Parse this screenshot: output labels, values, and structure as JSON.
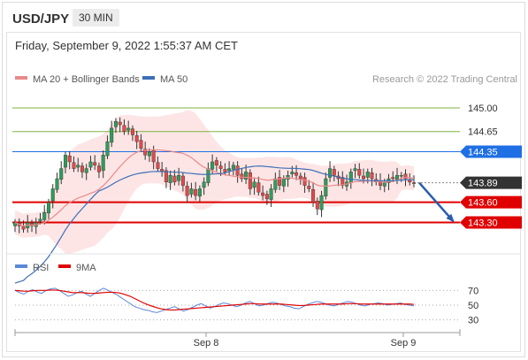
{
  "header": {
    "symbol": "USD/JPY",
    "timeframe": "30 MIN",
    "datetime": "Friday, September 9, 2022 1:55:37 AM CET"
  },
  "colors": {
    "up_candle": "#2e9d5a",
    "down_candle": "#e24a4a",
    "ma20": "#e88a8a",
    "bollinger_fill": "#fde0e0",
    "ma50": "#3d6fb8",
    "support": "#e00000",
    "resistance_blue": "#1f6fe5",
    "resistance_green": "#7cb342",
    "current": "#333333",
    "rsi": "#5b87d9",
    "rsi_ma": "#e00000",
    "forecast_arrow": "#2a5caa"
  },
  "chart_data": [
    {
      "type": "candlestick",
      "legend": [
        {
          "name": "MA 20 + Bollinger Bands",
          "color": "#e88a8a"
        },
        {
          "name": "MA 50",
          "color": "#3d6fb8"
        }
      ],
      "legend_placement": "top-left",
      "copyright": "Research © 2022 Trading Central",
      "ylim": [
        142.9,
        145.25
      ],
      "x_ticks": [
        "Sep 8",
        "Sep 9"
      ],
      "x_tick_index": [
        50,
        104
      ],
      "levels": [
        {
          "label": "145.00",
          "value": 145.0,
          "kind": "resistance-green"
        },
        {
          "label": "144.65",
          "value": 144.65,
          "kind": "resistance-green"
        },
        {
          "label": "144.35",
          "value": 144.35,
          "kind": "resistance-blue"
        },
        {
          "label": "143.89",
          "value": 143.89,
          "kind": "current"
        },
        {
          "label": "143.60",
          "value": 143.6,
          "kind": "support"
        },
        {
          "label": "143.30",
          "value": 143.3,
          "kind": "support"
        }
      ],
      "forecast": {
        "direction": "down",
        "from": 143.89,
        "to": 143.3
      },
      "close_series": [
        143.3,
        143.25,
        143.2,
        143.3,
        143.25,
        143.3,
        143.35,
        143.45,
        143.6,
        143.8,
        143.95,
        144.1,
        144.3,
        144.2,
        144.1,
        144.15,
        144.05,
        144.1,
        144.2,
        144.15,
        144.05,
        144.3,
        144.5,
        144.7,
        144.8,
        144.75,
        144.65,
        144.7,
        144.6,
        144.5,
        144.4,
        144.3,
        144.35,
        144.2,
        144.1,
        144.05,
        143.9,
        144.0,
        143.9,
        144.0,
        143.85,
        143.7,
        143.8,
        143.7,
        143.8,
        143.9,
        144.1,
        144.2,
        144.15,
        144.1,
        144.05,
        144.1,
        144.15,
        144.0,
        143.95,
        144.05,
        143.8,
        143.9,
        143.75,
        143.7,
        143.65,
        143.8,
        143.95,
        143.85,
        143.95,
        144.0,
        144.05,
        144.0,
        143.95,
        143.85,
        143.8,
        143.6,
        143.5,
        143.7,
        143.95,
        144.1,
        144.0,
        143.95,
        143.85,
        143.9,
        144.05,
        144.1,
        144.0,
        143.95,
        144.05,
        143.95,
        143.9,
        143.85,
        143.9,
        143.95,
        143.95,
        144.0,
        144.0,
        143.95,
        143.9,
        143.89
      ]
    },
    {
      "type": "line",
      "legend": [
        {
          "name": "RSI",
          "color": "#5b87d9"
        },
        {
          "name": "9MA",
          "color": "#e00000"
        }
      ],
      "ylim": [
        20,
        80
      ],
      "levels": [
        {
          "label": "70",
          "value": 70
        },
        {
          "label": "50",
          "value": 50
        },
        {
          "label": "30",
          "value": 30
        }
      ],
      "rsi": [
        70,
        67,
        65,
        69,
        71,
        68,
        66,
        70,
        72,
        73,
        70,
        66,
        62,
        64,
        67,
        69,
        65,
        62,
        66,
        70,
        73,
        70,
        67,
        64,
        60,
        56,
        52,
        48,
        46,
        44,
        43,
        41,
        40,
        42,
        44,
        46,
        48,
        45,
        42,
        44,
        47,
        50,
        52,
        49,
        46,
        48,
        51,
        53,
        52,
        50,
        48,
        50,
        53,
        55,
        52,
        49,
        50,
        52,
        54,
        53,
        51,
        49,
        48,
        46,
        45,
        48,
        51,
        53,
        55,
        54,
        52,
        50,
        49,
        51,
        53,
        55,
        54,
        52,
        50,
        49,
        51,
        52,
        53,
        52,
        50,
        51,
        52,
        53,
        51,
        50,
        49
      ],
      "rsi_ma": [
        70,
        69.5,
        69,
        69,
        69.5,
        70,
        70,
        70,
        70.5,
        70.5,
        70,
        69,
        68,
        67,
        67,
        67,
        66.5,
        66,
        66,
        66.5,
        67,
        67.5,
        67.5,
        67,
        66,
        64,
        62,
        59,
        56,
        53,
        50.5,
        48.5,
        46.5,
        45,
        44,
        43.5,
        43.5,
        44,
        44.5,
        45,
        45.5,
        46,
        46.5,
        47,
        47.5,
        48,
        48.5,
        49,
        49.5,
        50,
        50.5,
        51,
        51.5,
        52,
        52,
        51.5,
        51.5,
        51.5,
        51.5,
        51.5,
        51.5,
        51,
        50.5,
        50,
        49.5,
        49.5,
        50,
        50.5,
        51,
        51.5,
        51.5,
        51.5,
        51.5,
        51.5,
        51.5,
        52,
        52,
        52,
        51.5,
        51.5,
        51.5,
        51.5,
        51.5,
        51.5,
        51.5,
        51.5,
        51.5,
        51.5,
        51.5,
        51.5,
        51
      ]
    }
  ]
}
